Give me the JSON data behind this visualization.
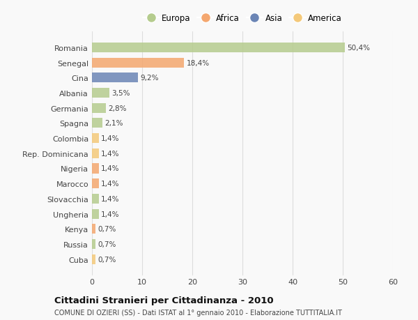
{
  "categories": [
    "Romania",
    "Senegal",
    "Cina",
    "Albania",
    "Germania",
    "Spagna",
    "Colombia",
    "Rep. Dominicana",
    "Nigeria",
    "Marocco",
    "Slovacchia",
    "Ungheria",
    "Kenya",
    "Russia",
    "Cuba"
  ],
  "values": [
    50.4,
    18.4,
    9.2,
    3.5,
    2.8,
    2.1,
    1.4,
    1.4,
    1.4,
    1.4,
    1.4,
    1.4,
    0.7,
    0.7,
    0.7
  ],
  "labels": [
    "50,4%",
    "18,4%",
    "9,2%",
    "3,5%",
    "2,8%",
    "2,1%",
    "1,4%",
    "1,4%",
    "1,4%",
    "1,4%",
    "1,4%",
    "1,4%",
    "0,7%",
    "0,7%",
    "0,7%"
  ],
  "colors": [
    "#b5cc8e",
    "#f4a76f",
    "#6b85b5",
    "#b5cc8e",
    "#b5cc8e",
    "#b5cc8e",
    "#f4c97a",
    "#f4c97a",
    "#f4a76f",
    "#f4a76f",
    "#b5cc8e",
    "#b5cc8e",
    "#f4a76f",
    "#b5cc8e",
    "#f4c97a"
  ],
  "legend_labels": [
    "Europa",
    "Africa",
    "Asia",
    "America"
  ],
  "legend_colors": [
    "#b5cc8e",
    "#f4a76f",
    "#6b85b5",
    "#f4c97a"
  ],
  "xlim": [
    0,
    60
  ],
  "xticks": [
    0,
    10,
    20,
    30,
    40,
    50,
    60
  ],
  "title": "Cittadini Stranieri per Cittadinanza - 2010",
  "subtitle": "COMUNE DI OZIERI (SS) - Dati ISTAT al 1° gennaio 2010 - Elaborazione TUTTITALIA.IT",
  "background_color": "#f9f9f9",
  "bar_height": 0.65,
  "grid_color": "#dddddd",
  "text_color": "#444444"
}
